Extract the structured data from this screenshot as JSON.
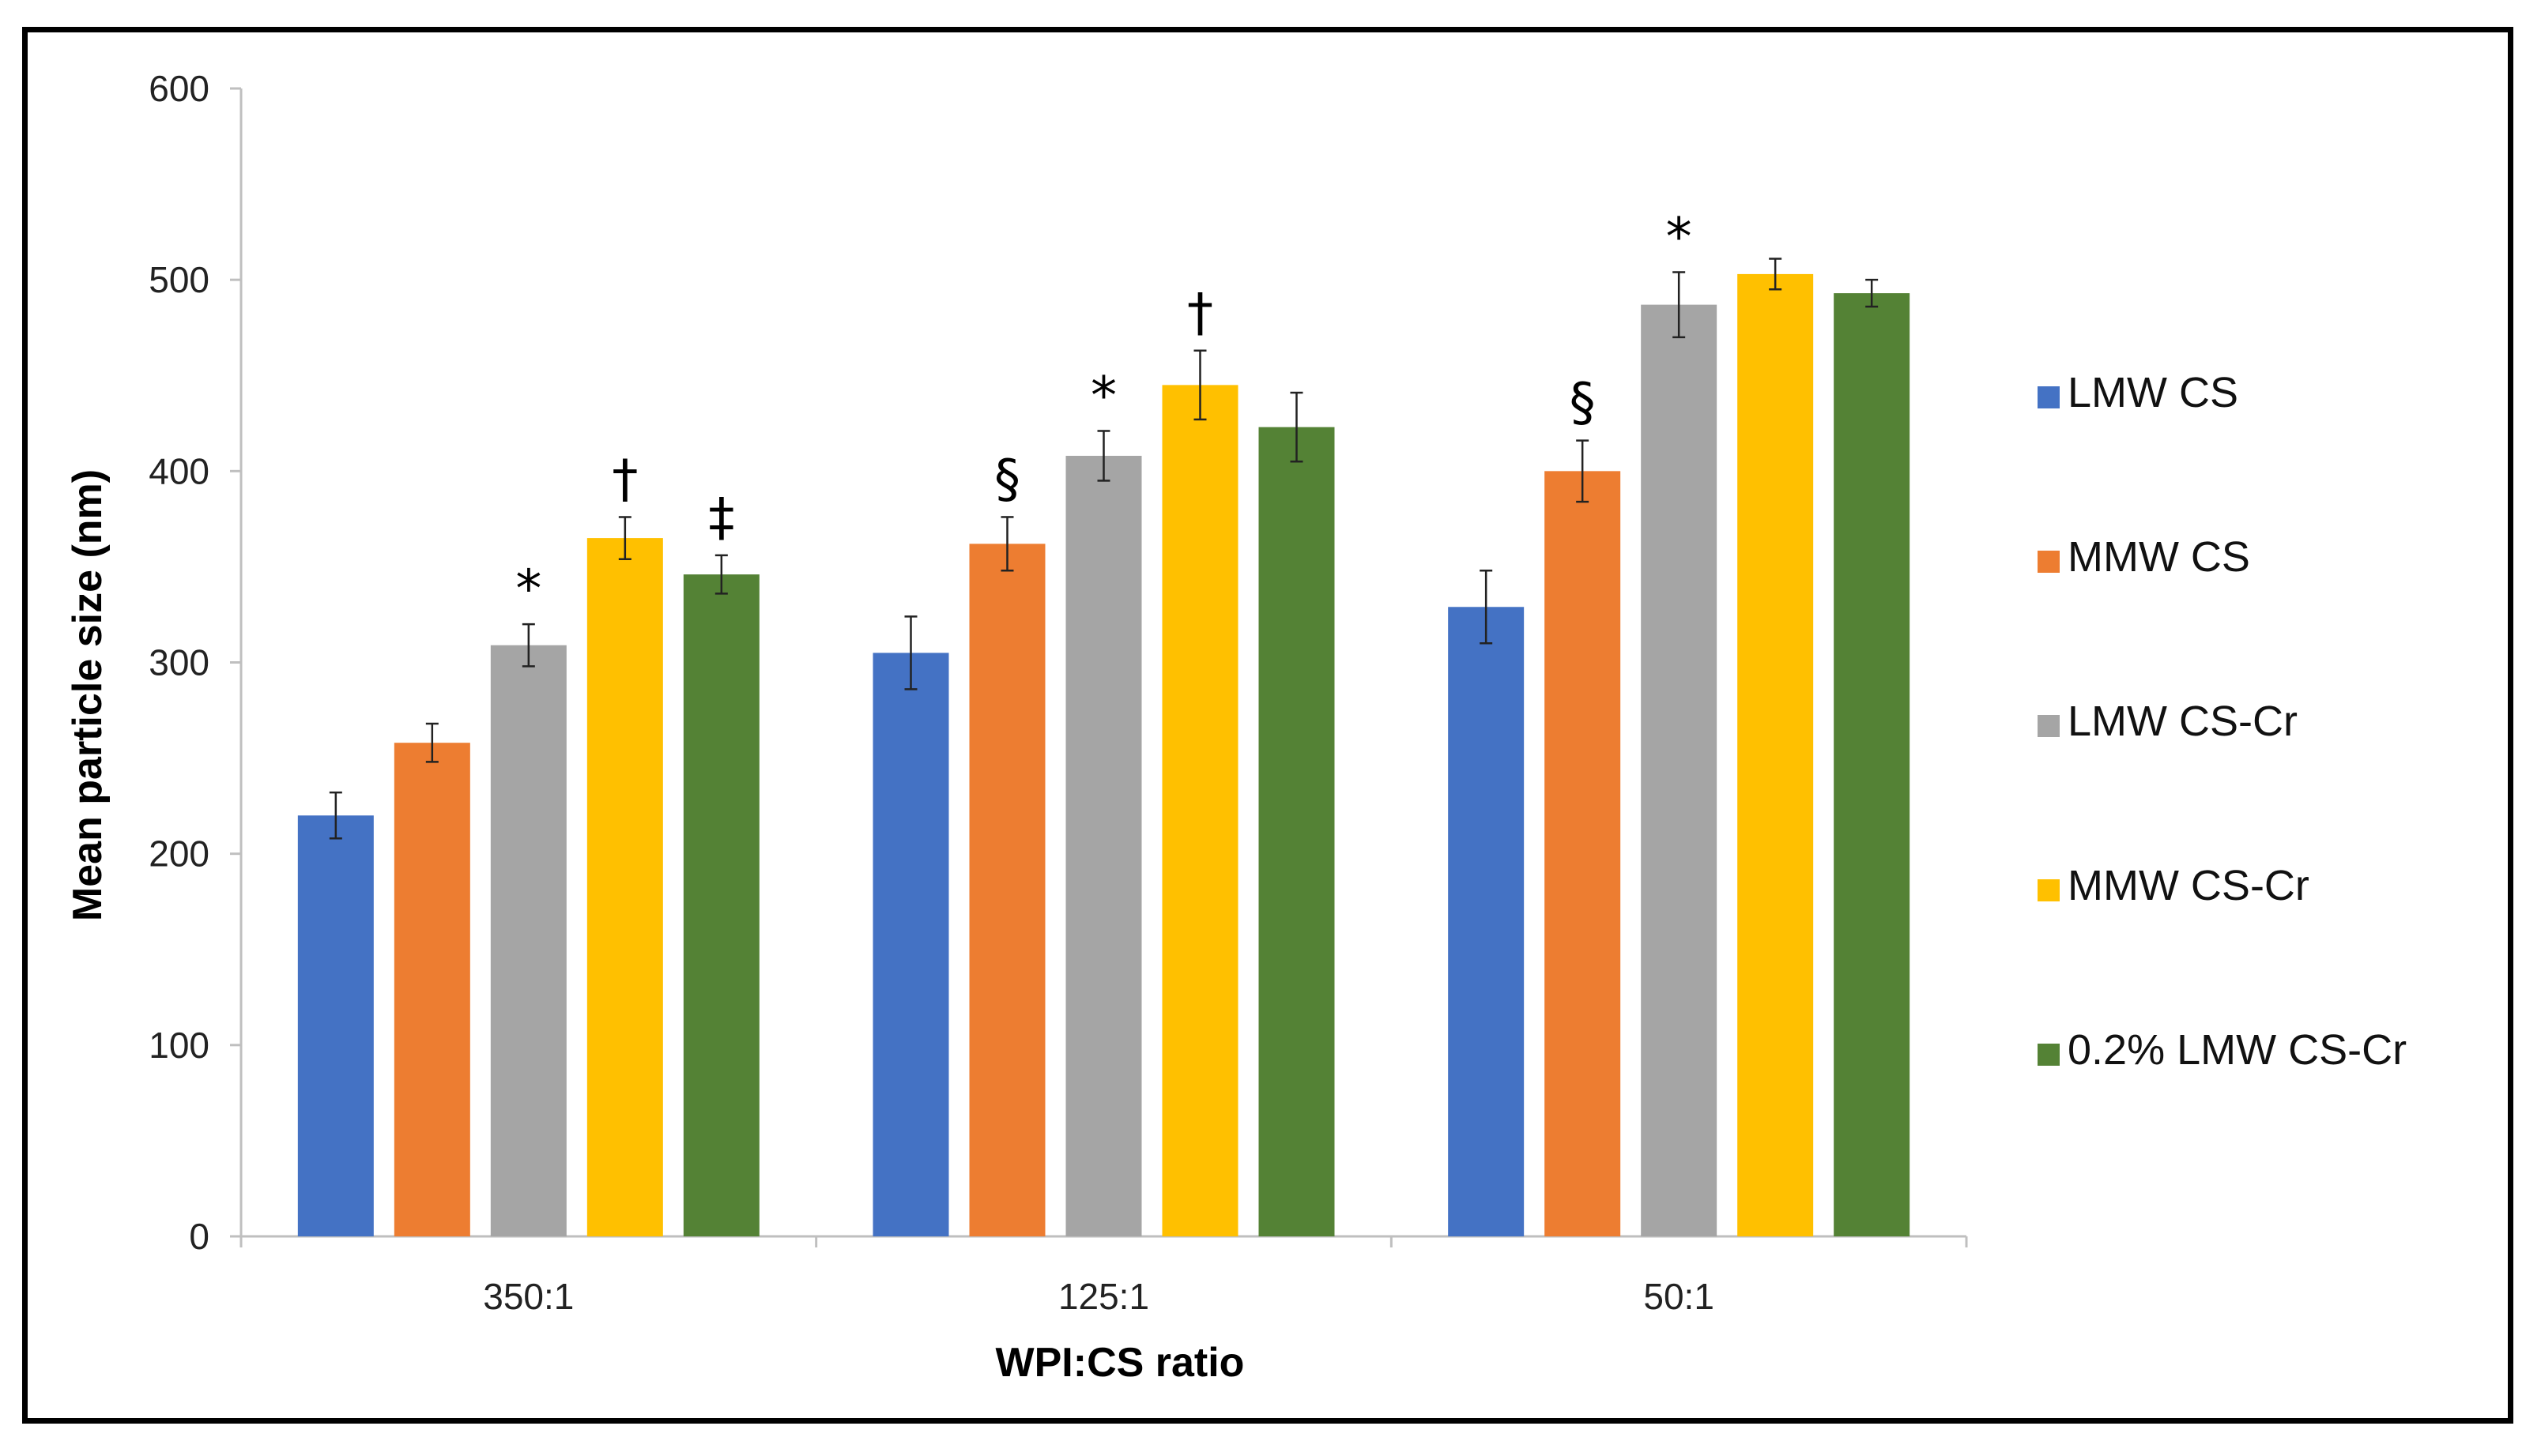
{
  "chart_data": {
    "type": "bar",
    "xlabel": "WPI:CS ratio",
    "ylabel": "Mean particle size (nm)",
    "ylim": [
      0,
      600
    ],
    "yticks": [
      "0",
      "100",
      "200",
      "300",
      "400",
      "500",
      "600"
    ],
    "grid": false,
    "legend_position": "right",
    "categories": [
      "350:1",
      "125:1",
      "50:1"
    ],
    "series": [
      {
        "name": "LMW CS",
        "color": "#4472C4",
        "values": [
          220,
          305,
          329
        ],
        "errors": [
          12,
          19,
          19
        ],
        "markers": [
          "",
          "",
          ""
        ]
      },
      {
        "name": "MMW CS",
        "color": "#ED7D31",
        "values": [
          258,
          362,
          400
        ],
        "errors": [
          10,
          14,
          16
        ],
        "markers": [
          "",
          "§",
          "§"
        ]
      },
      {
        "name": "LMW CS-Cr",
        "color": "#A5A5A5",
        "values": [
          309,
          408,
          487
        ],
        "errors": [
          11,
          13,
          17
        ],
        "markers": [
          "*",
          "*",
          "*"
        ]
      },
      {
        "name": "MMW CS-Cr",
        "color": "#FFC000",
        "values": [
          365,
          445,
          503
        ],
        "errors": [
          11,
          18,
          8
        ],
        "markers": [
          "†",
          "†",
          ""
        ]
      },
      {
        "name": "0.2% LMW CS-Cr",
        "color": "#548235",
        "values": [
          346,
          423,
          493
        ],
        "errors": [
          10,
          18,
          7
        ],
        "markers": [
          "‡",
          "",
          ""
        ]
      }
    ]
  }
}
